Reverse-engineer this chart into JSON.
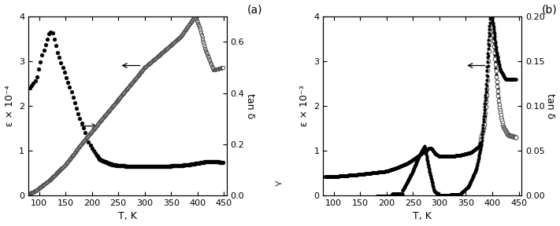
{
  "panel_a": {
    "title": "(a)",
    "xlabel": "T, K",
    "ylabel_left": "ε × 10⁻⁴",
    "ylabel_right": "tan δ",
    "xlim": [
      80,
      455
    ],
    "ylim_left": [
      0,
      4
    ],
    "ylim_right": [
      0,
      0.7
    ],
    "yticks_left": [
      0,
      1,
      2,
      3,
      4
    ],
    "yticks_right": [
      0,
      0.2,
      0.4,
      0.6
    ],
    "xticks": [
      100,
      150,
      200,
      250,
      300,
      350,
      400,
      450
    ]
  },
  "panel_b": {
    "title": "(b)",
    "xlabel": "T, K",
    "ylabel_left": "ε × 10⁻³",
    "ylabel_right": "tan δ",
    "xlim": [
      80,
      455
    ],
    "ylim_left": [
      0,
      4
    ],
    "ylim_right": [
      0,
      0.2
    ],
    "yticks_left": [
      0,
      1,
      2,
      3,
      4
    ],
    "yticks_right": [
      0,
      0.05,
      0.1,
      0.15,
      0.2
    ],
    "xticks": [
      100,
      150,
      200,
      250,
      300,
      350,
      400,
      450
    ]
  }
}
